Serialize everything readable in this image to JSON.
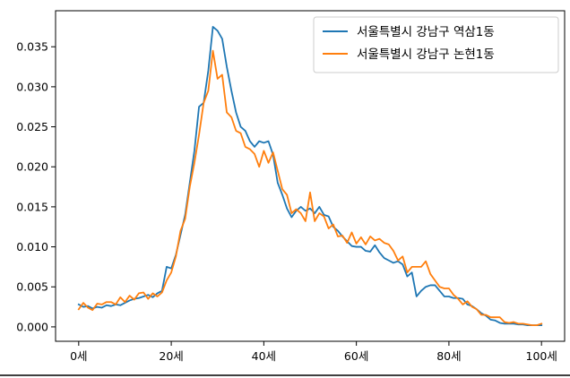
{
  "chart_data": {
    "type": "line",
    "title": "",
    "xlabel": "",
    "ylabel": "",
    "xlim": [
      -5,
      105
    ],
    "ylim": [
      -0.0018,
      0.0395
    ],
    "x_ticks": [
      {
        "value": 0,
        "label": "0세"
      },
      {
        "value": 20,
        "label": "20세"
      },
      {
        "value": 40,
        "label": "40세"
      },
      {
        "value": 60,
        "label": "60세"
      },
      {
        "value": 80,
        "label": "80세"
      },
      {
        "value": 100,
        "label": "100세"
      }
    ],
    "y_ticks": [
      {
        "value": 0.0,
        "label": "0.000"
      },
      {
        "value": 0.005,
        "label": "0.005"
      },
      {
        "value": 0.01,
        "label": "0.010"
      },
      {
        "value": 0.015,
        "label": "0.015"
      },
      {
        "value": 0.02,
        "label": "0.020"
      },
      {
        "value": 0.025,
        "label": "0.025"
      },
      {
        "value": 0.03,
        "label": "0.030"
      },
      {
        "value": 0.035,
        "label": "0.035"
      }
    ],
    "grid": false,
    "legend_position": "top-right",
    "series": [
      {
        "name": "서울특별시 강남구 역삼1동",
        "color": "#1f77b4",
        "x": [
          0,
          1,
          2,
          3,
          4,
          5,
          6,
          7,
          8,
          9,
          10,
          11,
          12,
          13,
          14,
          15,
          16,
          17,
          18,
          19,
          20,
          21,
          22,
          23,
          24,
          25,
          26,
          27,
          28,
          29,
          30,
          31,
          32,
          33,
          34,
          35,
          36,
          37,
          38,
          39,
          40,
          41,
          42,
          43,
          44,
          45,
          46,
          47,
          48,
          49,
          50,
          51,
          52,
          53,
          54,
          55,
          56,
          57,
          58,
          59,
          60,
          61,
          62,
          63,
          64,
          65,
          66,
          67,
          68,
          69,
          70,
          71,
          72,
          73,
          74,
          75,
          76,
          77,
          78,
          79,
          80,
          81,
          82,
          83,
          84,
          85,
          86,
          87,
          88,
          89,
          90,
          91,
          92,
          93,
          94,
          95,
          96,
          97,
          98,
          99,
          100
        ],
        "y": [
          0.0028,
          0.0025,
          0.0026,
          0.0023,
          0.0025,
          0.0024,
          0.0027,
          0.0026,
          0.0028,
          0.0027,
          0.003,
          0.0033,
          0.0035,
          0.0036,
          0.0038,
          0.004,
          0.0037,
          0.0042,
          0.0045,
          0.0075,
          0.0073,
          0.009,
          0.0115,
          0.014,
          0.018,
          0.022,
          0.0275,
          0.028,
          0.032,
          0.0375,
          0.037,
          0.036,
          0.0325,
          0.0295,
          0.0268,
          0.025,
          0.0245,
          0.0232,
          0.0225,
          0.0232,
          0.023,
          0.0232,
          0.0215,
          0.018,
          0.0165,
          0.0148,
          0.0137,
          0.0145,
          0.015,
          0.0145,
          0.0148,
          0.0142,
          0.015,
          0.014,
          0.0138,
          0.0125,
          0.012,
          0.0113,
          0.0107,
          0.0101,
          0.01,
          0.01,
          0.0095,
          0.0094,
          0.0102,
          0.0093,
          0.0086,
          0.0083,
          0.008,
          0.0082,
          0.0078,
          0.0063,
          0.0068,
          0.0038,
          0.0045,
          0.005,
          0.0052,
          0.0052,
          0.0045,
          0.0038,
          0.0038,
          0.0036,
          0.0036,
          0.0035,
          0.0028,
          0.0026,
          0.0022,
          0.0017,
          0.0014,
          0.0009,
          0.0008,
          0.0005,
          0.0004,
          0.0004,
          0.0004,
          0.0003,
          0.0003,
          0.0002,
          0.0002,
          0.0002,
          0.0002
        ]
      },
      {
        "name": "서울특별시 강남구 논현1동",
        "color": "#ff7f0e",
        "x": [
          0,
          1,
          2,
          3,
          4,
          5,
          6,
          7,
          8,
          9,
          10,
          11,
          12,
          13,
          14,
          15,
          16,
          17,
          18,
          19,
          20,
          21,
          22,
          23,
          24,
          25,
          26,
          27,
          28,
          29,
          30,
          31,
          32,
          33,
          34,
          35,
          36,
          37,
          38,
          39,
          40,
          41,
          42,
          43,
          44,
          45,
          46,
          47,
          48,
          49,
          50,
          51,
          52,
          53,
          54,
          55,
          56,
          57,
          58,
          59,
          60,
          61,
          62,
          63,
          64,
          65,
          66,
          67,
          68,
          69,
          70,
          71,
          72,
          73,
          74,
          75,
          76,
          77,
          78,
          79,
          80,
          81,
          82,
          83,
          84,
          85,
          86,
          87,
          88,
          89,
          90,
          91,
          92,
          93,
          94,
          95,
          96,
          97,
          98,
          99,
          100
        ],
        "y": [
          0.0022,
          0.003,
          0.0024,
          0.0021,
          0.0029,
          0.0028,
          0.0031,
          0.0031,
          0.0028,
          0.0037,
          0.0031,
          0.0039,
          0.0034,
          0.0042,
          0.0043,
          0.0035,
          0.0042,
          0.0038,
          0.0043,
          0.0058,
          0.0068,
          0.0088,
          0.012,
          0.0135,
          0.0175,
          0.0205,
          0.024,
          0.028,
          0.0295,
          0.0345,
          0.031,
          0.0315,
          0.0268,
          0.0262,
          0.0245,
          0.0242,
          0.0225,
          0.0222,
          0.0216,
          0.02,
          0.022,
          0.0205,
          0.0218,
          0.0195,
          0.0172,
          0.0165,
          0.0142,
          0.0147,
          0.0142,
          0.0132,
          0.0168,
          0.0132,
          0.0142,
          0.0138,
          0.0123,
          0.0128,
          0.0113,
          0.0114,
          0.0105,
          0.0118,
          0.0104,
          0.0112,
          0.0103,
          0.0113,
          0.0108,
          0.011,
          0.0105,
          0.0103,
          0.0095,
          0.0083,
          0.0088,
          0.0068,
          0.0075,
          0.0075,
          0.0075,
          0.0082,
          0.0066,
          0.0058,
          0.005,
          0.0048,
          0.0048,
          0.004,
          0.0035,
          0.0028,
          0.0032,
          0.0025,
          0.0022,
          0.0015,
          0.0015,
          0.0012,
          0.0012,
          0.0012,
          0.0006,
          0.0005,
          0.0006,
          0.0004,
          0.0004,
          0.0003,
          0.0002,
          0.0002,
          0.0004
        ]
      }
    ]
  }
}
